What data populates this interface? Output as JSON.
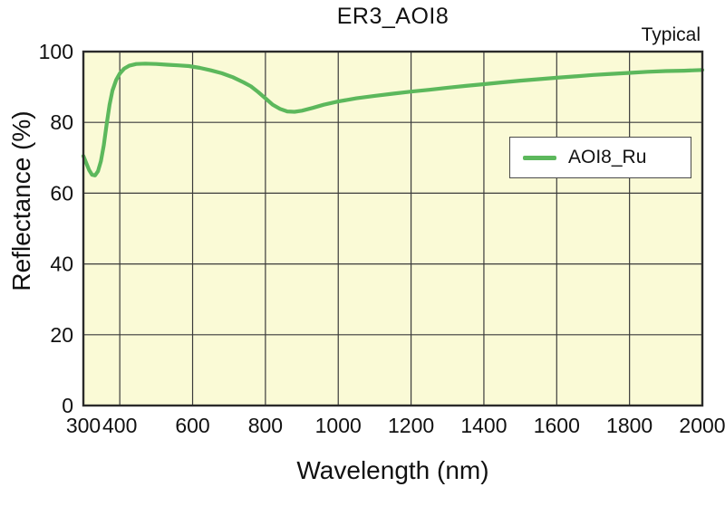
{
  "chart_data": {
    "type": "line",
    "title": "ER3_AOI8",
    "annotation": "Typical",
    "xlabel": "Wavelength (nm)",
    "ylabel": "Reflectance (%)",
    "xlim": [
      300,
      2000
    ],
    "ylim": [
      0,
      100
    ],
    "xticks": [
      300,
      400,
      600,
      800,
      1000,
      1200,
      1400,
      1600,
      1800,
      2000
    ],
    "yticks": [
      0,
      20,
      40,
      60,
      80,
      100
    ],
    "grid": true,
    "legend_position": "inside-right-upper",
    "colors": {
      "plot_background": "#fafad6",
      "grid": "#3b3b3b",
      "axis": "#2a2a2a",
      "text": "#111111",
      "line": "#5cb85c"
    },
    "series": [
      {
        "name": "AOI8_Ru",
        "color": "#5cb85c",
        "points": [
          [
            300,
            70.5
          ],
          [
            308,
            68.5
          ],
          [
            316,
            66.5
          ],
          [
            324,
            65.2
          ],
          [
            332,
            65.0
          ],
          [
            340,
            66.2
          ],
          [
            348,
            69.0
          ],
          [
            356,
            73.5
          ],
          [
            364,
            79.5
          ],
          [
            372,
            85.0
          ],
          [
            380,
            89.0
          ],
          [
            390,
            92.0
          ],
          [
            400,
            93.8
          ],
          [
            412,
            95.2
          ],
          [
            426,
            96.0
          ],
          [
            445,
            96.5
          ],
          [
            470,
            96.6
          ],
          [
            500,
            96.5
          ],
          [
            530,
            96.3
          ],
          [
            560,
            96.1
          ],
          [
            590,
            95.9
          ],
          [
            620,
            95.4
          ],
          [
            650,
            94.7
          ],
          [
            680,
            93.9
          ],
          [
            710,
            92.8
          ],
          [
            740,
            91.3
          ],
          [
            760,
            90.2
          ],
          [
            780,
            88.6
          ],
          [
            800,
            86.8
          ],
          [
            820,
            85.0
          ],
          [
            840,
            83.8
          ],
          [
            860,
            83.1
          ],
          [
            880,
            83.0
          ],
          [
            900,
            83.3
          ],
          [
            930,
            84.1
          ],
          [
            960,
            85.0
          ],
          [
            1000,
            85.9
          ],
          [
            1050,
            86.8
          ],
          [
            1100,
            87.5
          ],
          [
            1150,
            88.1
          ],
          [
            1200,
            88.7
          ],
          [
            1250,
            89.2
          ],
          [
            1300,
            89.8
          ],
          [
            1350,
            90.3
          ],
          [
            1400,
            90.8
          ],
          [
            1450,
            91.3
          ],
          [
            1500,
            91.8
          ],
          [
            1550,
            92.2
          ],
          [
            1600,
            92.6
          ],
          [
            1650,
            93.0
          ],
          [
            1700,
            93.4
          ],
          [
            1750,
            93.7
          ],
          [
            1800,
            94.0
          ],
          [
            1850,
            94.3
          ],
          [
            1900,
            94.5
          ],
          [
            1950,
            94.6
          ],
          [
            2000,
            94.8
          ]
        ]
      }
    ]
  }
}
